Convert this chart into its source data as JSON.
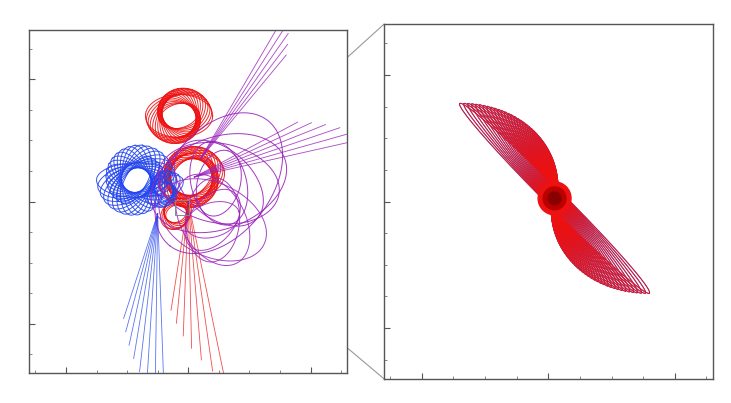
{
  "background_color": "#ffffff",
  "border_color": "#555555",
  "connector_color": "#999999",
  "blue_color": "#2244ee",
  "red_color": "#ee1111",
  "purple_color": "#9922bb",
  "line_width": 0.7,
  "fig_width": 7.31,
  "fig_height": 4.03
}
